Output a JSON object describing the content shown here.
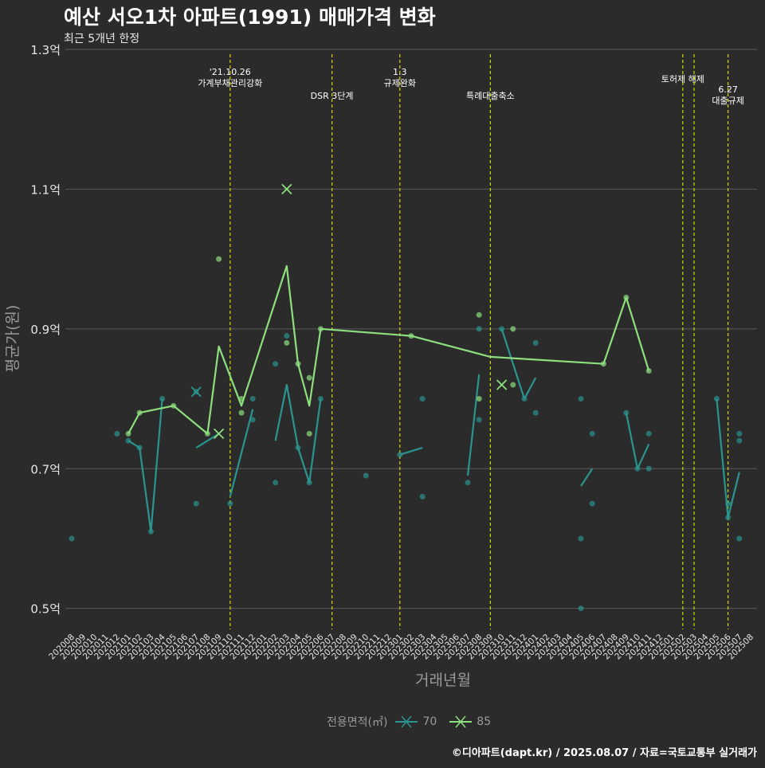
{
  "title": "예산 서오1차 아파트(1991) 매매가격 변화",
  "subtitle": "최근 5개년 한정",
  "caption": "©디아파트(dapt.kr) / 2025.08.07 / 자료=국토교통부 실거래가",
  "legend_title": "전용면적(㎡)",
  "colors": {
    "s70": "#2a9490",
    "s85": "#8de07d",
    "event_line": "#d4d400",
    "grid": "#5a5a5a",
    "axis_text": "#e6e6e6"
  },
  "chart_data": {
    "type": "line",
    "title": "예산 서오1차 아파트(1991) 매매가격 변화",
    "subtitle": "최근 5개년 한정",
    "xlabel": "거래년월",
    "ylabel": "평균가(원)",
    "ylim": [
      0.47,
      1.3
    ],
    "y_ticks": [
      0.5,
      0.7,
      0.9,
      1.1,
      1.3
    ],
    "y_tick_labels": [
      "0.5억",
      "0.7억",
      "0.9억",
      "1.1억",
      "1.3억"
    ],
    "x_ticks": [
      "202008",
      "202009",
      "202010",
      "202011",
      "202012",
      "202101",
      "202102",
      "202103",
      "202104",
      "202105",
      "202106",
      "202107",
      "202108",
      "202109",
      "202110",
      "202111",
      "202112",
      "202201",
      "202202",
      "202203",
      "202204",
      "202205",
      "202206",
      "202207",
      "202208",
      "202209",
      "202210",
      "202211",
      "202212",
      "202301",
      "202302",
      "202303",
      "202304",
      "202305",
      "202306",
      "202307",
      "202308",
      "202309",
      "202310",
      "202311",
      "202312",
      "202401",
      "202402",
      "202403",
      "202404",
      "202405",
      "202406",
      "202407",
      "202408",
      "202409",
      "202410",
      "202411",
      "202412",
      "202501",
      "202502",
      "202503",
      "202504",
      "202505",
      "202506",
      "202507",
      "202508"
    ],
    "grid": true,
    "legend_position": "bottom",
    "events": [
      {
        "x": "202110",
        "label": [
          "'21.10.26",
          "가계부채관리강화"
        ],
        "row": 0
      },
      {
        "x": "202207",
        "label": [
          "DSR 3단계"
        ],
        "row": 2
      },
      {
        "x": "202301",
        "label": [
          "1.3",
          "규제완화"
        ],
        "row": 0
      },
      {
        "x": "202309",
        "label": [
          "특례대출축소"
        ],
        "row": 2
      },
      {
        "x": "202502",
        "label": [
          "토허제 해제"
        ],
        "row": 1
      },
      {
        "x": "202503",
        "label": [],
        "row": 1
      },
      {
        "x": "202506",
        "label": [
          "6.27",
          "대출규제"
        ],
        "row": 3
      }
    ],
    "series": [
      {
        "name": "70",
        "line_segments": [
          [
            [
              "202101",
              0.74
            ],
            [
              "202102",
              0.73
            ],
            [
              "202103",
              0.61
            ],
            [
              "202104",
              0.8
            ]
          ],
          [
            [
              "202107",
              0.73
            ],
            [
              "202109",
              0.75
            ]
          ],
          [
            [
              "202110",
              0.66
            ],
            [
              "202112",
              0.785
            ]
          ],
          [
            [
              "202202",
              0.74
            ],
            [
              "202203",
              0.82
            ],
            [
              "202204",
              0.73
            ],
            [
              "202205",
              0.68
            ],
            [
              "202206",
              0.8
            ]
          ],
          [
            [
              "202301",
              0.72
            ],
            [
              "202303",
              0.73
            ]
          ],
          [
            [
              "202307",
              0.69
            ],
            [
              "202308",
              0.835
            ]
          ],
          [
            [
              "202310",
              0.9
            ],
            [
              "202312",
              0.8
            ],
            [
              "202401",
              0.83
            ]
          ],
          [
            [
              "202405",
              0.675
            ],
            [
              "202406",
              0.7
            ]
          ],
          [
            [
              "202409",
              0.78
            ],
            [
              "202410",
              0.7
            ],
            [
              "202411",
              0.735
            ]
          ],
          [
            [
              "202505",
              0.8
            ],
            [
              "202506",
              0.63
            ],
            [
              "202507",
              0.695
            ]
          ]
        ],
        "points": [
          [
            "202008",
            0.6
          ],
          [
            "202012",
            0.75
          ],
          [
            "202101",
            0.74
          ],
          [
            "202102",
            0.73
          ],
          [
            "202103",
            0.61
          ],
          [
            "202104",
            0.8
          ],
          [
            "202107",
            0.65
          ],
          [
            "202107",
            0.81
          ],
          [
            "202110",
            0.65
          ],
          [
            "202112",
            0.8
          ],
          [
            "202112",
            0.77
          ],
          [
            "202202",
            0.85
          ],
          [
            "202202",
            0.68
          ],
          [
            "202203",
            0.89
          ],
          [
            "202204",
            0.73
          ],
          [
            "202205",
            0.68
          ],
          [
            "202206",
            0.8
          ],
          [
            "202210",
            0.69
          ],
          [
            "202301",
            0.72
          ],
          [
            "202303",
            0.8
          ],
          [
            "202303",
            0.66
          ],
          [
            "202307",
            0.68
          ],
          [
            "202308",
            0.9
          ],
          [
            "202308",
            0.77
          ],
          [
            "202310",
            0.9
          ],
          [
            "202312",
            0.8
          ],
          [
            "202401",
            0.78
          ],
          [
            "202401",
            0.88
          ],
          [
            "202405",
            0.6
          ],
          [
            "202405",
            0.8
          ],
          [
            "202405",
            0.5
          ],
          [
            "202406",
            0.65
          ],
          [
            "202406",
            0.75
          ],
          [
            "202409",
            0.78
          ],
          [
            "202410",
            0.7
          ],
          [
            "202411",
            0.7
          ],
          [
            "202411",
            0.75
          ],
          [
            "202505",
            0.8
          ],
          [
            "202506",
            0.63
          ],
          [
            "202506",
            0.65
          ],
          [
            "202507",
            0.74
          ],
          [
            "202507",
            0.6
          ],
          [
            "202507",
            0.75
          ]
        ],
        "crosses": [
          [
            "202107",
            0.81
          ]
        ]
      },
      {
        "name": "85",
        "line_segments": [
          [
            [
              "202101",
              0.75
            ],
            [
              "202102",
              0.78
            ],
            [
              "202105",
              0.79
            ],
            [
              "202108",
              0.75
            ],
            [
              "202109",
              0.875
            ],
            [
              "202111",
              0.79
            ],
            [
              "202203",
              0.99
            ],
            [
              "202204",
              0.85
            ],
            [
              "202205",
              0.79
            ],
            [
              "202206",
              0.9
            ],
            [
              "202302",
              0.89
            ],
            [
              "202309",
              0.86
            ],
            [
              "202407",
              0.85
            ],
            [
              "202409",
              0.945
            ],
            [
              "202411",
              0.84
            ]
          ]
        ],
        "points": [
          [
            "202101",
            0.75
          ],
          [
            "202102",
            0.78
          ],
          [
            "202105",
            0.79
          ],
          [
            "202108",
            0.75
          ],
          [
            "202109",
            1.0
          ],
          [
            "202111",
            0.78
          ],
          [
            "202111",
            0.8
          ],
          [
            "202203",
            0.88
          ],
          [
            "202204",
            0.85
          ],
          [
            "202205",
            0.83
          ],
          [
            "202205",
            0.75
          ],
          [
            "202206",
            0.9
          ],
          [
            "202302",
            0.89
          ],
          [
            "202308",
            0.92
          ],
          [
            "202308",
            0.8
          ],
          [
            "202311",
            0.9
          ],
          [
            "202311",
            0.82
          ],
          [
            "202407",
            0.85
          ],
          [
            "202409",
            0.945
          ],
          [
            "202411",
            0.84
          ]
        ],
        "crosses": [
          [
            "202109",
            0.75
          ],
          [
            "202203",
            1.1
          ],
          [
            "202310",
            0.82
          ]
        ]
      }
    ]
  }
}
